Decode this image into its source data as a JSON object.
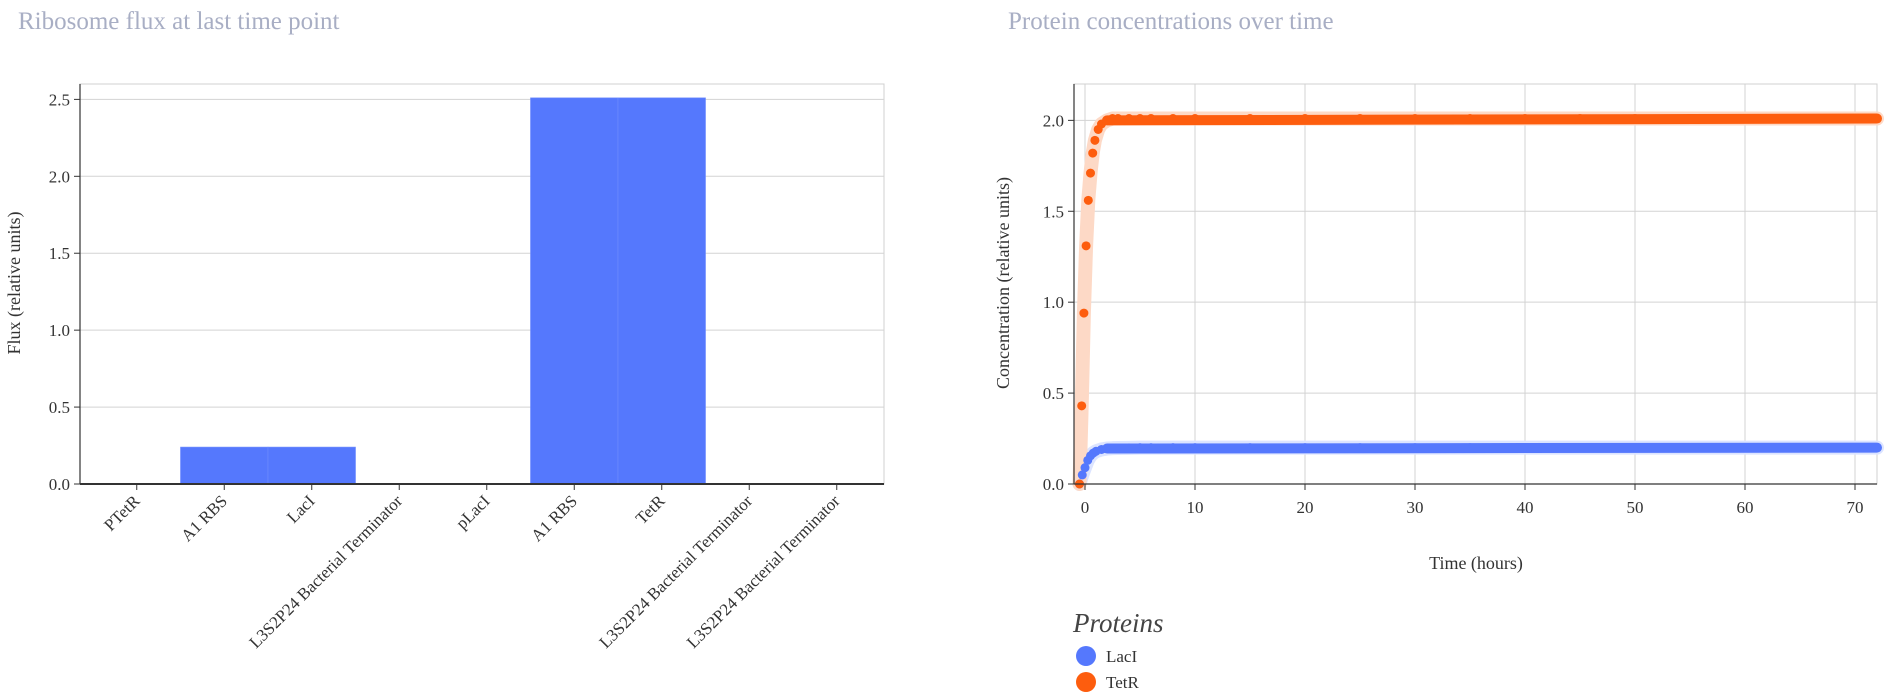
{
  "chart_data": [
    {
      "type": "bar",
      "title": "Ribosome flux at last time point",
      "ylabel": "Flux (relative units)",
      "xlabel": "",
      "ylim": [
        0,
        2.6
      ],
      "yticks": [
        "0.0",
        "0.5",
        "1.0",
        "1.5",
        "2.0",
        "2.5"
      ],
      "ytick_values": [
        0,
        0.5,
        1.0,
        1.5,
        2.0,
        2.5
      ],
      "categories": [
        "PTetR",
        "A1 RBS",
        "LacI",
        "L3S2P24 Bacterial Terminator",
        "pLacI",
        "A1 RBS",
        "TetR",
        "L3S2P24 Bacterial Terminator",
        "L3S2P24 Bacterial Terminator"
      ],
      "values": [
        0,
        0.24,
        0.24,
        0,
        0,
        2.51,
        2.51,
        0,
        0
      ],
      "bar_color": "#5578fd",
      "grid": true
    },
    {
      "type": "scatter",
      "title": "Protein concentrations over time",
      "xlabel": "Time (hours)",
      "ylabel": "Concentration (relative units)",
      "xlim": [
        -1,
        72
      ],
      "ylim": [
        0,
        2.2
      ],
      "xticks": [
        "0",
        "10",
        "20",
        "30",
        "40",
        "50",
        "60",
        "70"
      ],
      "xtick_values": [
        0,
        10,
        20,
        30,
        40,
        50,
        60,
        70
      ],
      "yticks": [
        "0.0",
        "0.5",
        "1.0",
        "1.5",
        "2.0"
      ],
      "ytick_values": [
        0,
        0.5,
        1.0,
        1.5,
        2.0
      ],
      "grid": true,
      "legend_title": "Proteins",
      "legend_position": "bottom-left",
      "series": [
        {
          "name": "LacI",
          "color": "#5578fd",
          "band_color": "#dce4ff",
          "x": [
            -0.5,
            -0.25,
            0,
            0.25,
            0.5,
            0.75,
            1,
            1.5,
            2,
            2.5,
            3,
            4,
            5,
            6,
            8,
            10,
            15,
            20,
            25,
            30,
            35,
            40,
            45,
            50,
            55,
            60,
            65,
            70,
            72
          ],
          "y": [
            0,
            0.05,
            0.09,
            0.13,
            0.155,
            0.17,
            0.18,
            0.19,
            0.195,
            0.197,
            0.198,
            0.199,
            0.2,
            0.2,
            0.2,
            0.2,
            0.2,
            0.2,
            0.2,
            0.2,
            0.2,
            0.2,
            0.2,
            0.2,
            0.2,
            0.2,
            0.2,
            0.2,
            0.2
          ]
        },
        {
          "name": "TetR",
          "color": "#fd5d0e",
          "band_color": "#fdd9c6",
          "x": [
            -0.5,
            -0.3,
            -0.1,
            0.1,
            0.3,
            0.5,
            0.7,
            0.9,
            1.2,
            1.5,
            2,
            2.5,
            3,
            4,
            5,
            6,
            8,
            10,
            15,
            20,
            25,
            30,
            35,
            40,
            45,
            50,
            55,
            60,
            65,
            70,
            72
          ],
          "y": [
            0.0,
            0.43,
            0.94,
            1.31,
            1.56,
            1.71,
            1.82,
            1.89,
            1.95,
            1.98,
            2.0,
            2.01,
            2.01,
            2.01,
            2.01,
            2.01,
            2.01,
            2.01,
            2.01,
            2.01,
            2.01,
            2.01,
            2.01,
            2.01,
            2.01,
            2.01,
            2.01,
            2.01,
            2.01,
            2.01,
            2.01
          ]
        }
      ]
    }
  ]
}
